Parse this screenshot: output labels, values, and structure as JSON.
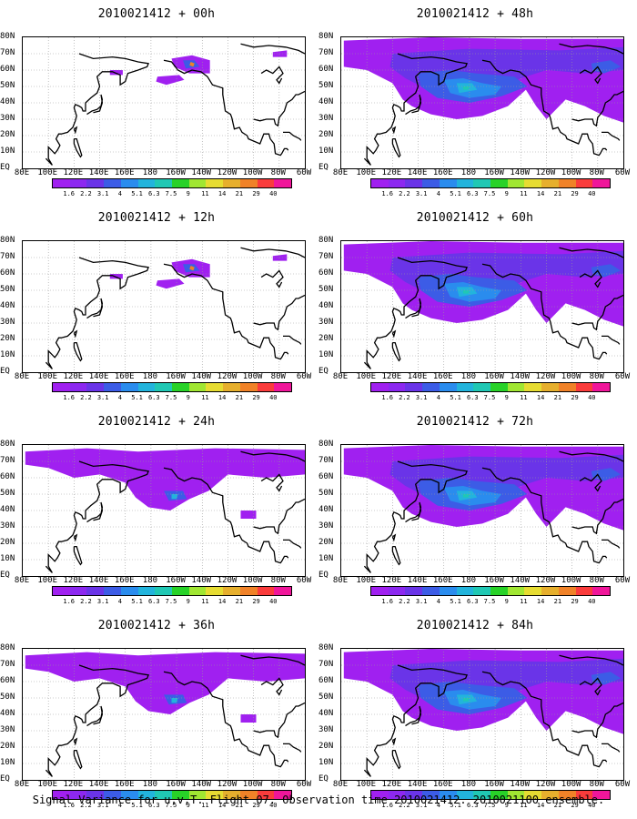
{
  "figure": {
    "caption": "Signal Variance for u,v,T. Flight 07. Observation time 2010021412. 2010021100 ensemble."
  },
  "axes": {
    "lat_labels": [
      "80N",
      "70N",
      "60N",
      "50N",
      "40N",
      "30N",
      "20N",
      "10N",
      "EQ"
    ],
    "lon_labels": [
      "80E",
      "100E",
      "120E",
      "140E",
      "160E",
      "180",
      "160W",
      "140W",
      "120W",
      "100W",
      "80W",
      "60W"
    ]
  },
  "colorbar": {
    "levels": [
      "1.6",
      "2.2",
      "3.1",
      "4",
      "5.1",
      "6.3",
      "7.5",
      "9",
      "11",
      "14",
      "21",
      "29",
      "40"
    ],
    "colors": [
      "#a020f0",
      "#8c28f0",
      "#6a34e8",
      "#3c5ce6",
      "#2a8cee",
      "#22b4dc",
      "#20c8b4",
      "#28d228",
      "#a0e632",
      "#e6dc32",
      "#e6af2d",
      "#f08228",
      "#fa3c3c",
      "#f0169a"
    ]
  },
  "panels": [
    {
      "title": "2010021412 + 00h",
      "coverage": "low"
    },
    {
      "title": "2010021412 + 48h",
      "coverage": "high"
    },
    {
      "title": "2010021412 + 12h",
      "coverage": "low"
    },
    {
      "title": "2010021412 + 60h",
      "coverage": "high"
    },
    {
      "title": "2010021412 + 24h",
      "coverage": "medium"
    },
    {
      "title": "2010021412 + 72h",
      "coverage": "high"
    },
    {
      "title": "2010021412 + 36h",
      "coverage": "medium"
    },
    {
      "title": "2010021412 + 84h",
      "coverage": "high"
    }
  ]
}
